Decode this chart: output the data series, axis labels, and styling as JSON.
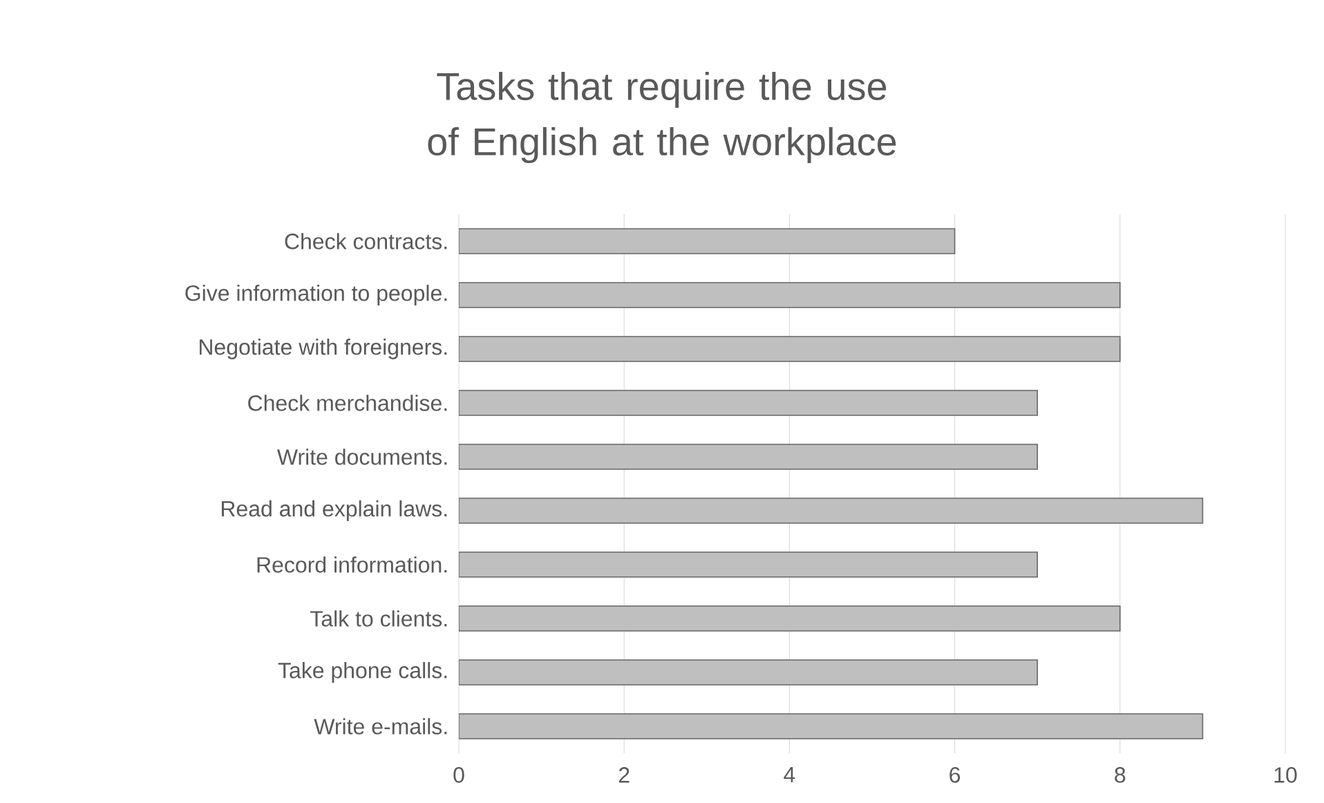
{
  "chart_data": {
    "type": "bar",
    "orientation": "horizontal",
    "title": "Tasks that require the use of English at the workplace",
    "categories": [
      "Check contracts.",
      "Give information to people.",
      "Negotiate with foreigners.",
      "Check merchandise.",
      "Write documents.",
      "Read and explain laws.",
      "Record information.",
      "Talk to clients.",
      "Take phone calls.",
      "Write e-mails."
    ],
    "values": [
      6,
      8,
      8,
      7,
      7,
      9,
      7,
      8,
      7,
      9
    ],
    "color": "#bfbfbf",
    "xlim": [
      0,
      10
    ],
    "xticks": [
      0,
      2,
      4,
      6,
      8,
      10
    ],
    "grid": "x"
  }
}
